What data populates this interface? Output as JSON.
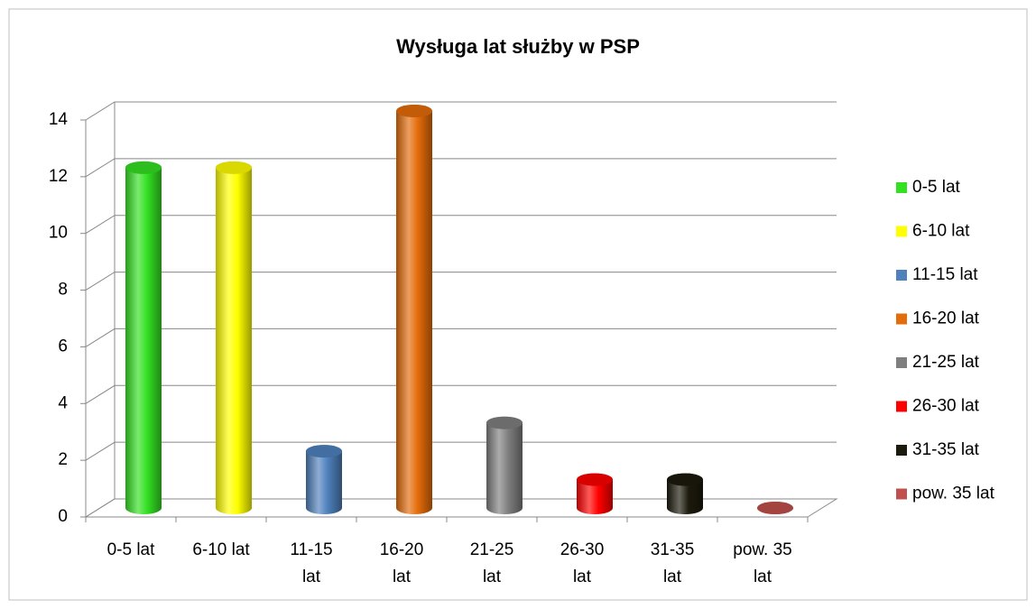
{
  "chart_data": {
    "type": "bar",
    "title": "Wysługa lat służby w PSP",
    "categories": [
      "0-5 lat",
      "6-10 lat",
      "11-15 lat",
      "16-20 lat",
      "21-25 lat",
      "26-30 lat",
      "31-35 lat",
      "pow. 35 lat"
    ],
    "values": [
      12,
      12,
      2,
      14,
      3,
      1,
      1,
      0
    ],
    "colors": [
      "#33e022",
      "#ffff00",
      "#4f81bd",
      "#e46c0a",
      "#7f7f7f",
      "#ff0000",
      "#1c1a0c",
      "#c0504d"
    ],
    "ylim": [
      0,
      14
    ],
    "yticks": [
      0,
      2,
      4,
      6,
      8,
      10,
      12,
      14
    ],
    "grid": true,
    "legend": "right"
  }
}
